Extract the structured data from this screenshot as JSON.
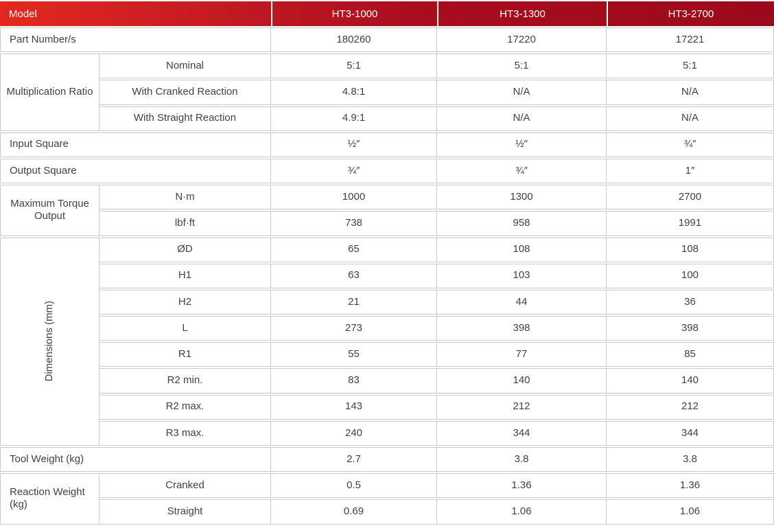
{
  "colors": {
    "header_red_bright": "#e3291e",
    "header_red_mid1": "#c81c23",
    "header_red_mid2": "#a80d1e",
    "header_red_dark": "#9a0a1c",
    "border": "#c9c9c9",
    "text": "#414141",
    "header_text": "#ffffff"
  },
  "table": {
    "header": {
      "model_label": "Model",
      "models": [
        "HT3-1000",
        "HT3-1300",
        "HT3-2700"
      ]
    },
    "sections": [
      {
        "label": "Part Number/s",
        "rows": [
          {
            "values": [
              "180260",
              "17220",
              "17221"
            ]
          }
        ]
      },
      {
        "label": "Multiplication Ratio",
        "rows": [
          {
            "sub": "Nominal",
            "values": [
              "5:1",
              "5:1",
              "5:1"
            ]
          },
          {
            "sub": "With Cranked Reaction",
            "values": [
              "4.8:1",
              "N/A",
              "N/A"
            ]
          },
          {
            "sub": "With Straight Reaction",
            "values": [
              "4.9:1",
              "N/A",
              "N/A"
            ]
          }
        ]
      },
      {
        "label": "Input Square",
        "rows": [
          {
            "values": [
              "½″",
              "½″",
              "¾″"
            ]
          }
        ]
      },
      {
        "label": "Output Square",
        "rows": [
          {
            "values": [
              "¾″",
              "¾″",
              "1″"
            ]
          }
        ]
      },
      {
        "label": "Maximum Torque Output",
        "rows": [
          {
            "sub": "N·m",
            "values": [
              "1000",
              "1300",
              "2700"
            ]
          },
          {
            "sub": "lbf·ft",
            "values": [
              "738",
              "958",
              "1991"
            ]
          }
        ]
      },
      {
        "label": "Dimensions (mm)",
        "rows": [
          {
            "sub": "ØD",
            "values": [
              "65",
              "108",
              "108"
            ]
          },
          {
            "sub": "H1",
            "values": [
              "63",
              "103",
              "100"
            ]
          },
          {
            "sub": "H2",
            "values": [
              "21",
              "44",
              "36"
            ]
          },
          {
            "sub": "L",
            "values": [
              "273",
              "398",
              "398"
            ]
          },
          {
            "sub": "R1",
            "values": [
              "55",
              "77",
              "85"
            ]
          },
          {
            "sub": "R2 min.",
            "values": [
              "83",
              "140",
              "140"
            ]
          },
          {
            "sub": "R2 max.",
            "values": [
              "143",
              "212",
              "212"
            ]
          },
          {
            "sub": "R3 max.",
            "values": [
              "240",
              "344",
              "344"
            ]
          }
        ]
      },
      {
        "label": "Tool Weight (kg)",
        "rows": [
          {
            "values": [
              "2.7",
              "3.8",
              "3.8"
            ]
          }
        ]
      },
      {
        "label": "Reaction Weight (kg)",
        "rows": [
          {
            "sub": "Cranked",
            "values": [
              "0.5",
              "1.36",
              "1.36"
            ]
          },
          {
            "sub": "Straight",
            "values": [
              "0.69",
              "1.06",
              "1.06"
            ]
          }
        ]
      }
    ]
  }
}
